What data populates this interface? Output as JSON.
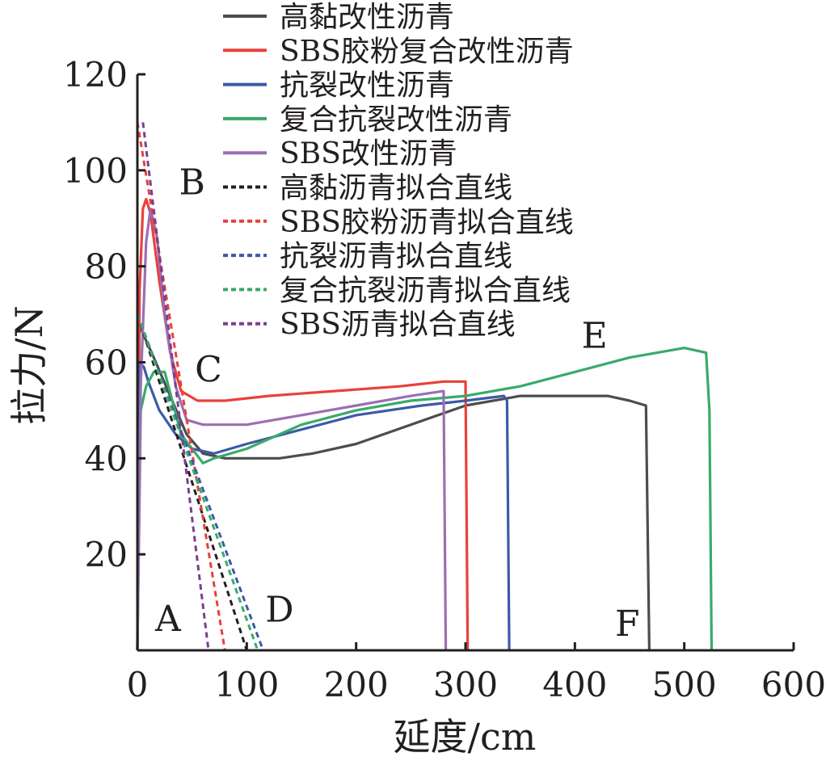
{
  "chart_data": {
    "type": "line",
    "xlabel": "延度/cm",
    "ylabel": "拉力/N",
    "xlim": [
      0,
      600
    ],
    "ylim": [
      0,
      120
    ],
    "x_ticks": [
      "0",
      "100",
      "200",
      "300",
      "400",
      "500",
      "600"
    ],
    "y_ticks": [
      "20",
      "40",
      "60",
      "80",
      "100",
      "120"
    ],
    "grid": false,
    "legend_position": "top-right",
    "annotations": [
      {
        "text": "A",
        "x": 28,
        "y": 4
      },
      {
        "text": "B",
        "x": 50,
        "y": 95
      },
      {
        "text": "C",
        "x": 65,
        "y": 56
      },
      {
        "text": "D",
        "x": 130,
        "y": 6
      },
      {
        "text": "E",
        "x": 418,
        "y": 63
      },
      {
        "text": "F",
        "x": 448,
        "y": 3
      }
    ],
    "series": [
      {
        "name": "高黏改性沥青",
        "style": "solid",
        "color": "#4d4d4d",
        "x": [
          0,
          1,
          5,
          15,
          30,
          45,
          60,
          80,
          100,
          130,
          160,
          200,
          250,
          300,
          350,
          380,
          430,
          450,
          465,
          468,
          469
        ],
        "y": [
          0,
          68,
          66,
          61,
          53,
          45,
          41,
          40,
          40,
          40,
          41,
          43,
          47,
          51,
          53,
          53,
          53,
          52,
          51,
          0,
          0
        ]
      },
      {
        "name": "SBS胶粉复合改性沥青",
        "style": "solid",
        "color": "#e8413c",
        "x": [
          0,
          2,
          5,
          8,
          12,
          20,
          30,
          40,
          55,
          80,
          120,
          180,
          240,
          280,
          300,
          302
        ],
        "y": [
          0,
          75,
          92,
          94,
          91,
          77,
          62,
          54,
          52,
          52,
          53,
          54,
          55,
          56,
          56,
          0
        ]
      },
      {
        "name": "抗裂改性沥青",
        "style": "solid",
        "color": "#3c5aa6",
        "x": [
          0,
          2,
          6,
          10,
          20,
          35,
          50,
          70,
          100,
          150,
          200,
          260,
          300,
          335,
          338,
          340
        ],
        "y": [
          0,
          60,
          59,
          56,
          50,
          45,
          42,
          41,
          43,
          46,
          49,
          51,
          52,
          53,
          52,
          0
        ]
      },
      {
        "name": "复合抗裂改性沥青",
        "style": "solid",
        "color": "#3aaa6a",
        "x": [
          0,
          3,
          8,
          15,
          25,
          40,
          60,
          70,
          100,
          150,
          200,
          250,
          300,
          350,
          400,
          450,
          500,
          520,
          523,
          525
        ],
        "y": [
          0,
          50,
          55,
          58,
          58,
          45,
          39,
          40,
          42,
          47,
          50,
          52,
          53,
          55,
          58,
          61,
          63,
          62,
          50,
          0
        ]
      },
      {
        "name": "SBS改性沥青",
        "style": "solid",
        "color": "#9b6fb3",
        "x": [
          0,
          3,
          8,
          12,
          18,
          25,
          35,
          45,
          60,
          100,
          150,
          200,
          250,
          280,
          282
        ],
        "y": [
          0,
          55,
          85,
          92,
          86,
          70,
          55,
          48,
          47,
          47,
          49,
          51,
          53,
          54,
          0
        ]
      },
      {
        "name": "高黏沥青拟合直线",
        "style": "dashed",
        "color": "#231f20",
        "x": [
          0,
          100
        ],
        "y": [
          70,
          0
        ]
      },
      {
        "name": "SBS胶粉沥青拟合直线",
        "style": "dashed",
        "color": "#e8413c",
        "x": [
          0,
          80
        ],
        "y": [
          110,
          0
        ]
      },
      {
        "name": "抗裂沥青拟合直线",
        "style": "dashed",
        "color": "#3c5aa6",
        "x": [
          0,
          115
        ],
        "y": [
          70,
          0
        ]
      },
      {
        "name": "复合抗裂沥青拟合直线",
        "style": "dashed",
        "color": "#3aaa6a",
        "x": [
          0,
          110
        ],
        "y": [
          70,
          0
        ]
      },
      {
        "name": "SBS沥青拟合直线",
        "style": "dashed",
        "color": "#7b3f8f",
        "x": [
          5,
          65
        ],
        "y": [
          110,
          0
        ]
      }
    ]
  }
}
